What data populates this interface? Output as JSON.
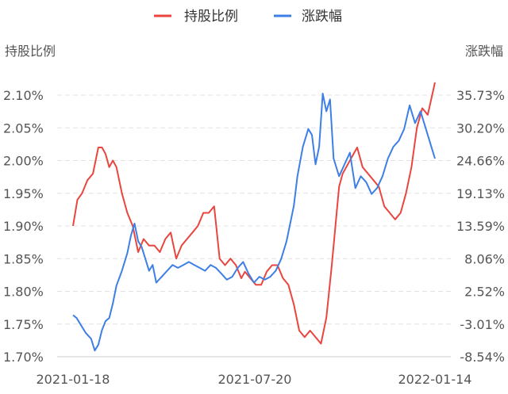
{
  "chart_data": {
    "type": "line",
    "legend": {
      "placement": "top-center",
      "items": [
        {
          "label": "持股比例",
          "color": "#e8463f"
        },
        {
          "label": "涨跌幅",
          "color": "#3e7fe6"
        }
      ]
    },
    "left_axis_title": "持股比例",
    "right_axis_title": "涨跌幅",
    "left_ticks": [
      "2.10%",
      "2.05%",
      "2.00%",
      "1.95%",
      "1.90%",
      "1.85%",
      "1.80%",
      "1.75%",
      "1.70%"
    ],
    "right_ticks": [
      "35.73%",
      "30.20%",
      "24.66%",
      "19.13%",
      "13.59%",
      "8.06%",
      "2.52%",
      "-3.01%",
      "-8.54%"
    ],
    "x_tick_labels": [
      "2021-01-18",
      "2021-07-20",
      "2022-01-14"
    ],
    "grid": "horizontal dashed",
    "x_range": [
      0,
      1
    ],
    "left_ylim": [
      1.7,
      2.1
    ],
    "right_ylim": [
      -8.54,
      35.73
    ],
    "series": [
      {
        "name": "持股比例",
        "axis": "left",
        "color": "#e8463f",
        "x": [
          0,
          0.012,
          0.025,
          0.04,
          0.055,
          0.07,
          0.08,
          0.09,
          0.1,
          0.11,
          0.12,
          0.135,
          0.15,
          0.165,
          0.18,
          0.195,
          0.21,
          0.225,
          0.24,
          0.255,
          0.27,
          0.285,
          0.3,
          0.315,
          0.33,
          0.345,
          0.36,
          0.375,
          0.39,
          0.405,
          0.42,
          0.435,
          0.45,
          0.465,
          0.475,
          0.49,
          0.505,
          0.52,
          0.535,
          0.55,
          0.565,
          0.58,
          0.595,
          0.61,
          0.625,
          0.64,
          0.655,
          0.67,
          0.685,
          0.7,
          0.715,
          0.725,
          0.735,
          0.745,
          0.755,
          0.765,
          0.775,
          0.785,
          0.8,
          0.815,
          0.83,
          0.845,
          0.86,
          0.875,
          0.89,
          0.905,
          0.92,
          0.935,
          0.95,
          0.965,
          0.98,
          1.0
        ],
        "values": [
          1.9,
          1.94,
          1.95,
          1.97,
          1.98,
          2.02,
          2.02,
          2.01,
          1.99,
          2.0,
          1.99,
          1.95,
          1.92,
          1.9,
          1.86,
          1.88,
          1.87,
          1.87,
          1.86,
          1.88,
          1.89,
          1.85,
          1.87,
          1.88,
          1.89,
          1.9,
          1.92,
          1.92,
          1.93,
          1.85,
          1.84,
          1.85,
          1.84,
          1.82,
          1.83,
          1.82,
          1.81,
          1.81,
          1.83,
          1.84,
          1.84,
          1.82,
          1.81,
          1.78,
          1.74,
          1.73,
          1.74,
          1.73,
          1.72,
          1.76,
          1.84,
          1.9,
          1.96,
          1.98,
          1.99,
          2.0,
          2.01,
          2.02,
          1.99,
          1.98,
          1.97,
          1.96,
          1.93,
          1.92,
          1.91,
          1.92,
          1.95,
          1.99,
          2.05,
          2.08,
          2.07,
          2.12
        ]
      },
      {
        "name": "涨跌幅",
        "axis": "right",
        "color": "#3e7fe6",
        "x": [
          0,
          0.01,
          0.02,
          0.035,
          0.05,
          0.06,
          0.07,
          0.08,
          0.09,
          0.1,
          0.11,
          0.12,
          0.135,
          0.15,
          0.16,
          0.17,
          0.18,
          0.19,
          0.2,
          0.21,
          0.22,
          0.23,
          0.245,
          0.26,
          0.275,
          0.29,
          0.305,
          0.32,
          0.335,
          0.35,
          0.365,
          0.38,
          0.395,
          0.41,
          0.425,
          0.44,
          0.455,
          0.47,
          0.485,
          0.5,
          0.515,
          0.53,
          0.545,
          0.56,
          0.575,
          0.59,
          0.6,
          0.61,
          0.62,
          0.635,
          0.65,
          0.66,
          0.67,
          0.68,
          0.69,
          0.7,
          0.71,
          0.72,
          0.735,
          0.75,
          0.765,
          0.78,
          0.795,
          0.81,
          0.825,
          0.84,
          0.855,
          0.87,
          0.885,
          0.9,
          0.915,
          0.93,
          0.945,
          0.96,
          0.975,
          0.99,
          1.0
        ],
        "values": [
          -1.5,
          -2.0,
          -3.0,
          -4.5,
          -5.5,
          -7.5,
          -6.5,
          -4.0,
          -2.5,
          -2.0,
          0.5,
          3.5,
          6.0,
          9.0,
          12.0,
          14.0,
          11.0,
          10.0,
          8.0,
          6.0,
          7.0,
          4.0,
          5.0,
          6.0,
          7.0,
          6.5,
          7.0,
          7.5,
          7.0,
          6.5,
          6.0,
          7.0,
          6.5,
          5.5,
          4.5,
          5.0,
          6.5,
          7.5,
          5.5,
          4.0,
          5.0,
          4.5,
          5.0,
          6.0,
          8.0,
          11.0,
          14.0,
          17.0,
          22.0,
          27.0,
          30.0,
          29.0,
          24.0,
          27.0,
          36.0,
          33.0,
          35.0,
          25.0,
          22.0,
          24.0,
          26.0,
          20.0,
          22.0,
          21.0,
          19.0,
          20.0,
          22.0,
          25.0,
          27.0,
          28.0,
          30.0,
          34.0,
          31.0,
          33.0,
          30.0,
          27.0,
          25.0
        ]
      }
    ]
  }
}
